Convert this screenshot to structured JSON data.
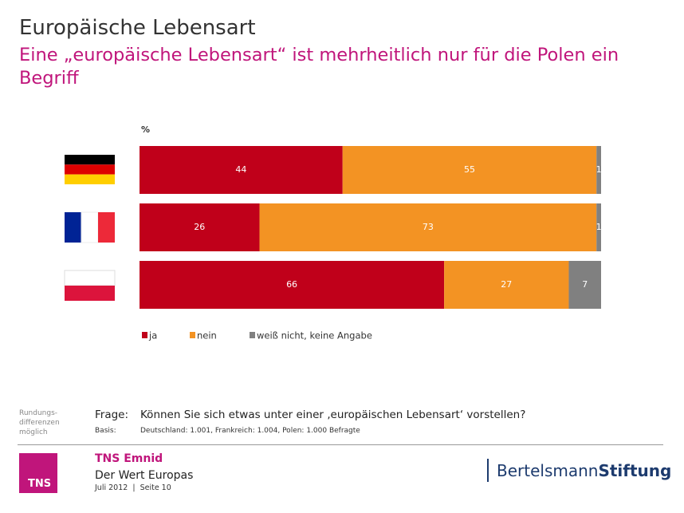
{
  "chart_data": {
    "type": "bar",
    "orientation": "horizontal",
    "stacked": true,
    "title": "Europäische Lebensart",
    "subtitle": "Eine „europäische Lebensart“ ist mehrheitlich nur für die Polen ein Begriff",
    "unit": "%",
    "categories": [
      null,
      null,
      null
    ],
    "xlim": [
      0,
      100
    ],
    "series": [
      {
        "name": "ja",
        "color": "#c0001a",
        "values": [
          44,
          26,
          66
        ]
      },
      {
        "name": "nein",
        "color": "#f39323",
        "values": [
          55,
          73,
          27
        ]
      },
      {
        "name": "weiß nicht, keine Angabe",
        "color": "#808080",
        "values": [
          1,
          1,
          7
        ]
      }
    ]
  },
  "footer": {
    "note": "Rundungs-differenzen möglich",
    "question_label": "Frage:",
    "question": "Können Sie sich etwas unter einer ‚europäischen Lebensart‘ vorstellen?",
    "basis_label": "Basis:",
    "basis": "Deutschland: 1.001, Frankreich: 1.004, Polen: 1.000 Befragte",
    "logo": "TNS",
    "brand": "TNS Emnid",
    "study": "Der Wert Europas",
    "date": "Juli 2012  |  Seite 10",
    "partner_1": "Bertelsmann",
    "partner_2": "Stiftung"
  }
}
